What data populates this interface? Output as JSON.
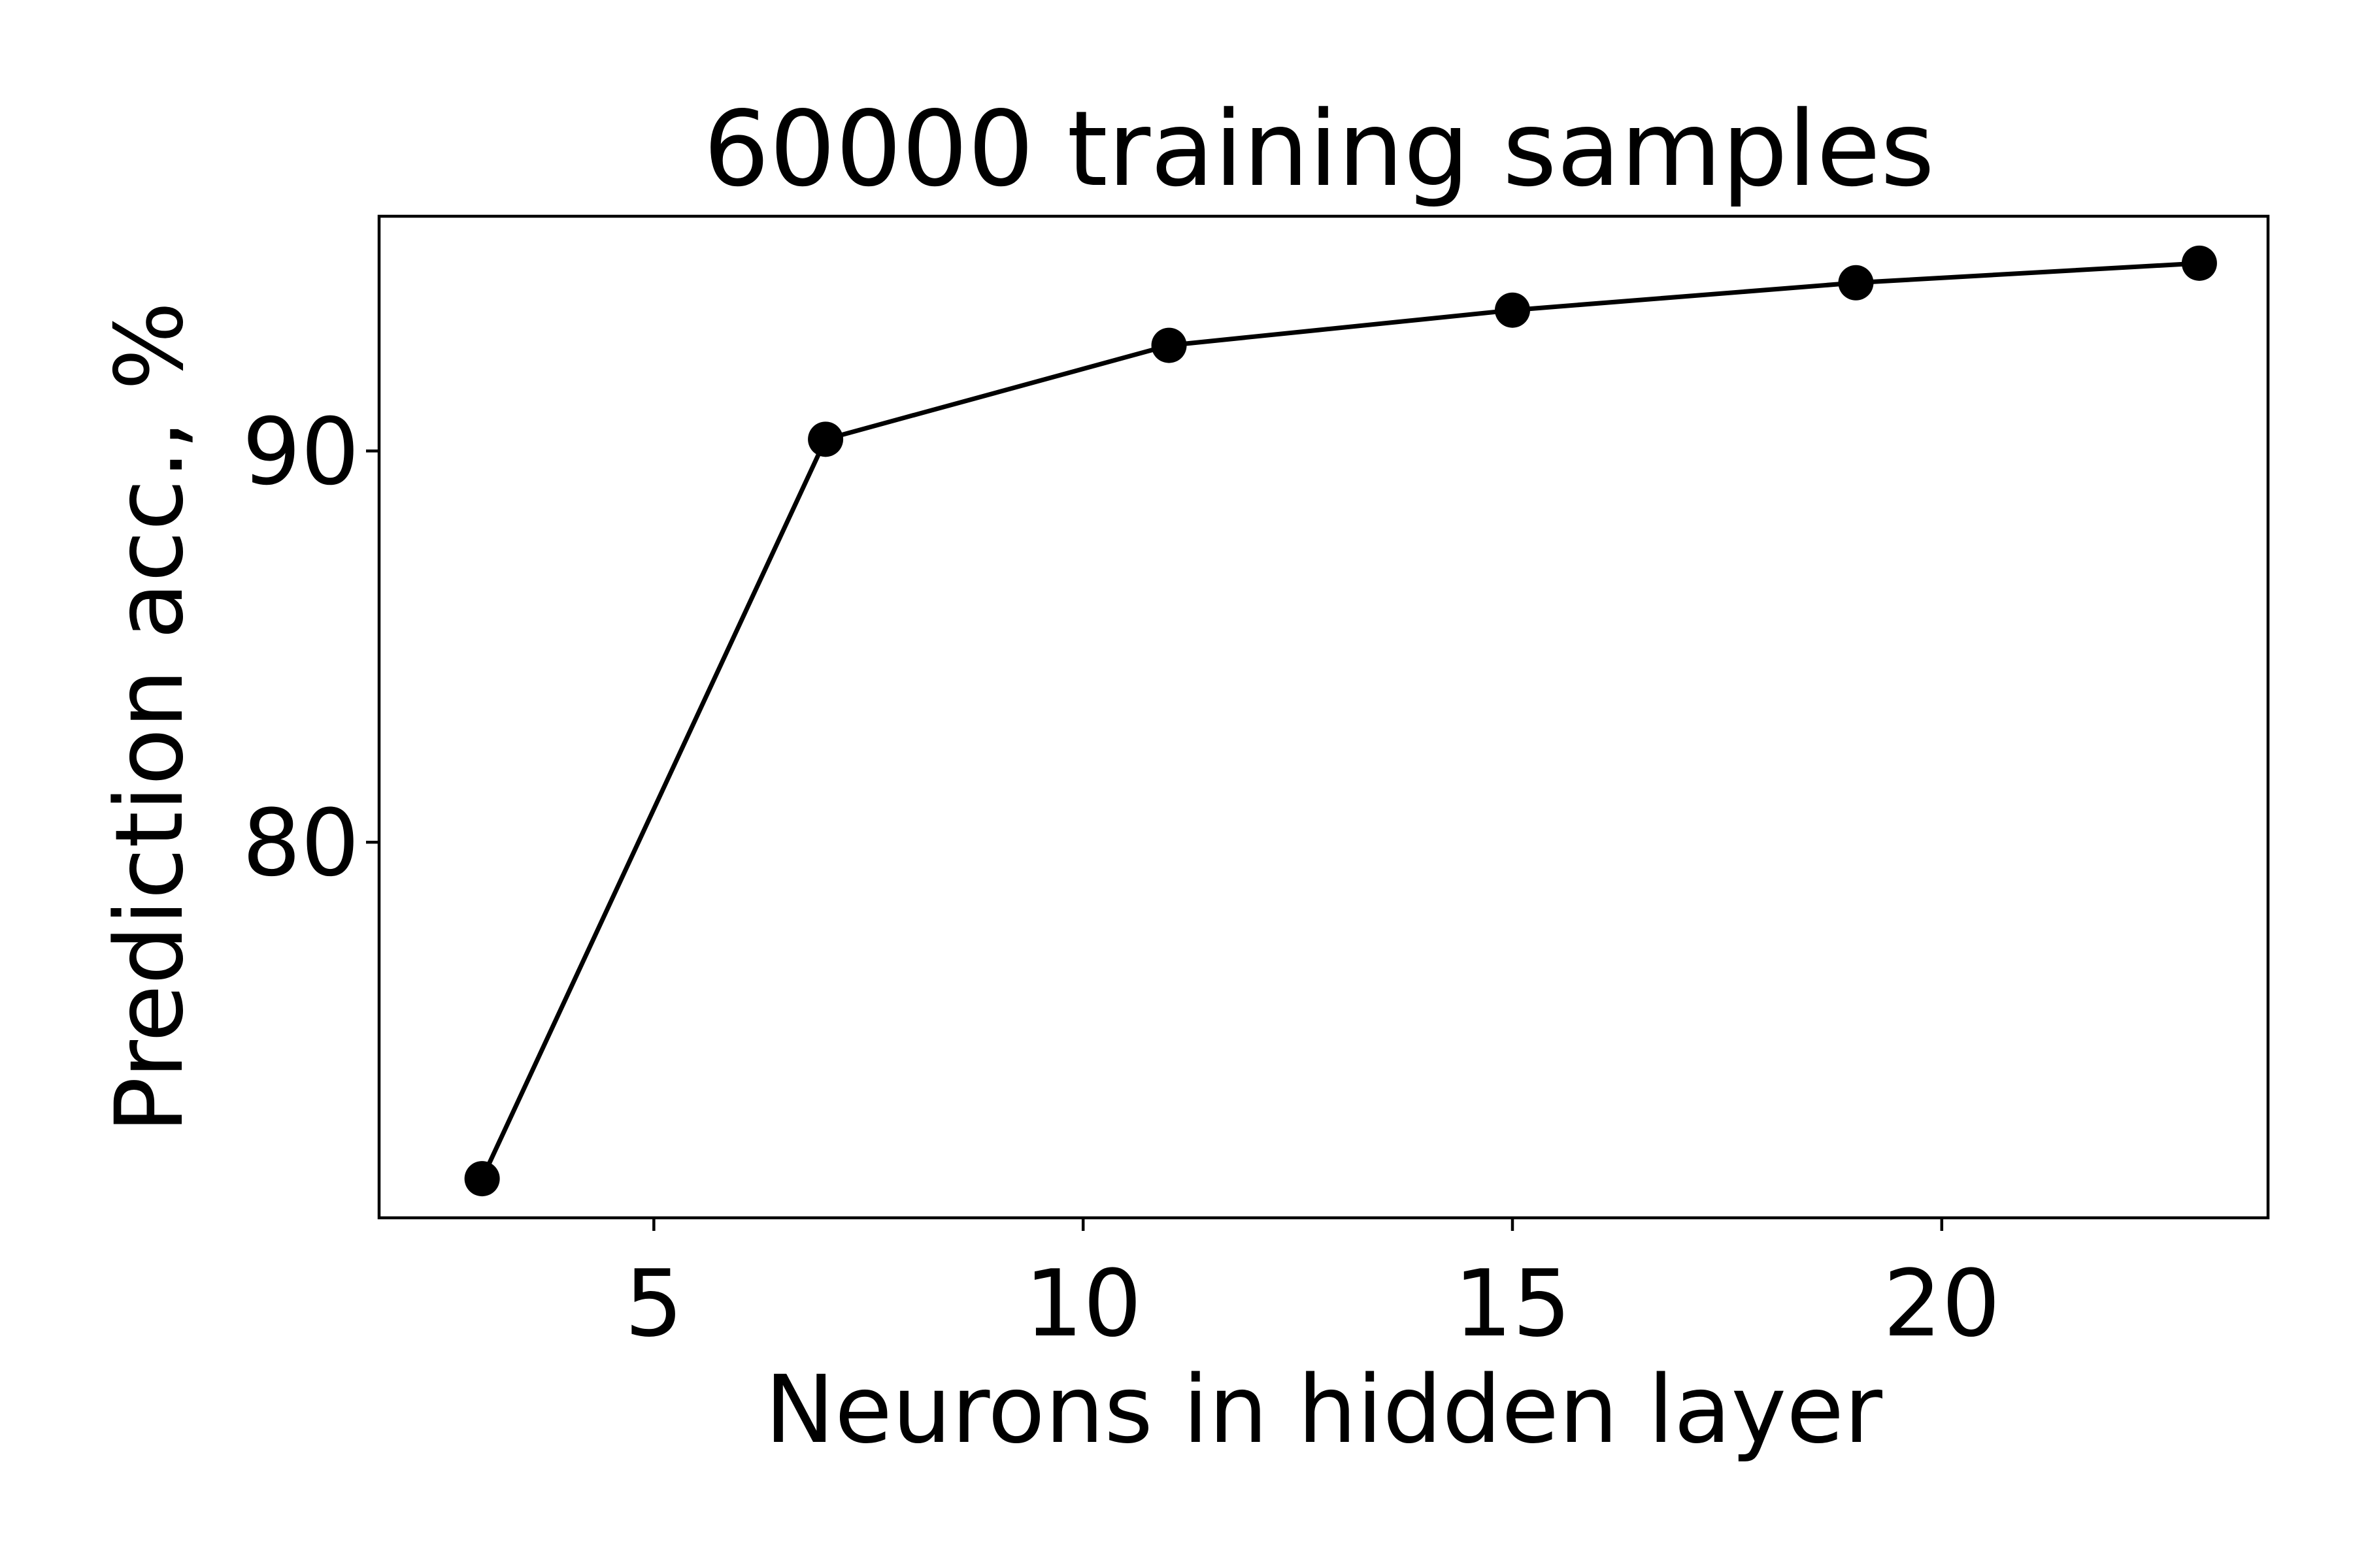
{
  "chart_data": {
    "type": "line",
    "title": "60000 training samples",
    "xlabel": "Neurons in hidden layer",
    "ylabel": "Prediction acc., %",
    "xlim": [
      1.8,
      23.8
    ],
    "ylim": [
      70.4,
      96.0
    ],
    "xticks": [
      5,
      10,
      15,
      20
    ],
    "yticks": [
      80,
      90
    ],
    "grid": false,
    "legend": "none",
    "series": [
      {
        "x": [
          3,
          7,
          11,
          15,
          19,
          23
        ],
        "y": [
          71.4,
          90.3,
          92.7,
          93.6,
          94.3,
          94.8
        ],
        "color": "#000000",
        "marker": "circle"
      }
    ]
  }
}
